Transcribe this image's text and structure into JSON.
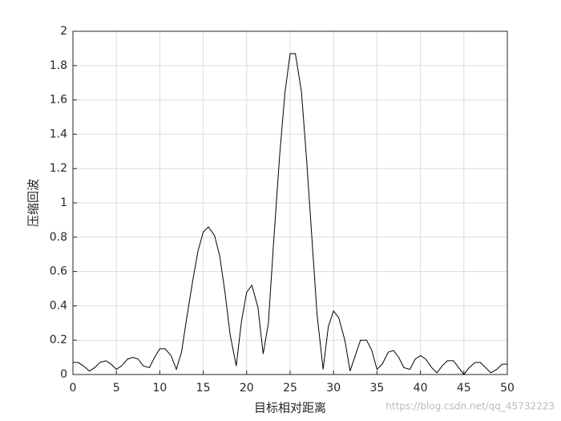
{
  "chart_data": {
    "type": "line",
    "x_label": "目标相对距离",
    "y_label": "压缩回波",
    "watermark": "https://blog.csdn.net/qq_45732223",
    "x": [
      0,
      0.6,
      1.2,
      1.9,
      2.5,
      3.1,
      3.8,
      4.4,
      5.0,
      5.6,
      6.3,
      6.9,
      7.5,
      8.1,
      8.8,
      9.4,
      10.0,
      10.6,
      11.3,
      11.9,
      12.5,
      13.1,
      13.8,
      14.4,
      15.0,
      15.6,
      16.3,
      16.9,
      17.5,
      18.1,
      18.8,
      19.4,
      20.0,
      20.6,
      21.3,
      21.9,
      22.5,
      23.1,
      23.8,
      24.4,
      25.0,
      25.6,
      26.3,
      26.9,
      27.5,
      28.1,
      28.8,
      29.4,
      30.0,
      30.6,
      31.3,
      31.9,
      32.5,
      33.1,
      33.8,
      34.4,
      35.0,
      35.6,
      36.3,
      36.9,
      37.5,
      38.1,
      38.8,
      39.4,
      40.0,
      40.6,
      41.3,
      41.9,
      42.5,
      43.1,
      43.8,
      44.4,
      45.0,
      45.6,
      46.3,
      46.9,
      47.5,
      48.1,
      48.8,
      49.4,
      50.0
    ],
    "series": [
      {
        "color": "#000000",
        "values": [
          0.07,
          0.07,
          0.05,
          0.02,
          0.04,
          0.07,
          0.08,
          0.06,
          0.03,
          0.05,
          0.09,
          0.1,
          0.09,
          0.05,
          0.04,
          0.1,
          0.15,
          0.15,
          0.11,
          0.03,
          0.13,
          0.33,
          0.55,
          0.72,
          0.83,
          0.86,
          0.81,
          0.69,
          0.48,
          0.23,
          0.05,
          0.31,
          0.48,
          0.52,
          0.39,
          0.12,
          0.3,
          0.77,
          1.28,
          1.64,
          1.87,
          1.87,
          1.65,
          1.25,
          0.8,
          0.35,
          0.03,
          0.28,
          0.37,
          0.33,
          0.2,
          0.02,
          0.11,
          0.2,
          0.2,
          0.14,
          0.03,
          0.06,
          0.13,
          0.14,
          0.1,
          0.04,
          0.03,
          0.09,
          0.11,
          0.09,
          0.04,
          0.01,
          0.05,
          0.08,
          0.08,
          0.04,
          0.0,
          0.04,
          0.07,
          0.07,
          0.04,
          0.01,
          0.03,
          0.06,
          0.06
        ]
      }
    ],
    "xlim": [
      0,
      50
    ],
    "xticks": [
      0,
      5,
      10,
      15,
      20,
      25,
      30,
      35,
      40,
      45,
      50
    ],
    "ylim": [
      0,
      2
    ],
    "yticks": [
      0,
      0.2,
      0.4,
      0.6,
      0.8,
      1,
      1.2,
      1.4,
      1.6,
      1.8,
      2
    ],
    "grid": true
  }
}
